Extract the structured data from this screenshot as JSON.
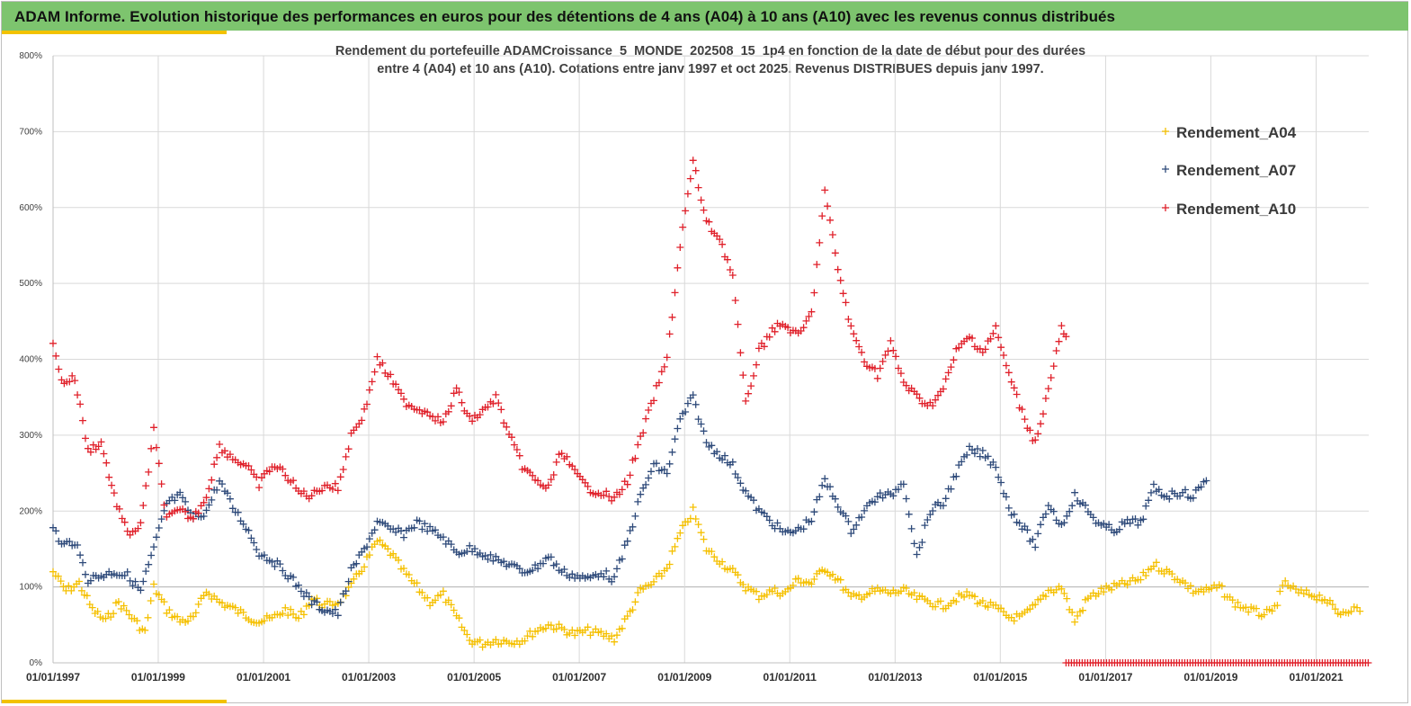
{
  "header": {
    "title": "ADAM Informe. Evolution historique des performances en euros pour des détentions de 4 ans (A04) à 10 ans (A10) avec les revenus connus distribués"
  },
  "colors": {
    "banner": "#7dc46e",
    "accent": "#f2c200",
    "A04": "#f5c000",
    "A07": "#2e4a7a",
    "A10": "#e0202a"
  },
  "chart_data": {
    "type": "scatter",
    "title_lines": [
      "Rendement du portefeuille ADAMCroissance_5_MONDE_202508_15_1p4  en fonction de la date de début pour des durées",
      "entre 4 (A04) et 10 ans (A10). Cotations entre janv 1997 et oct 2025. Revenus DISTRIBUES depuis janv 1997."
    ],
    "marker": "+",
    "x_type": "date",
    "xlim": [
      "1997-01-01",
      "2022-01-01"
    ],
    "x_tick_labels": [
      "01/01/1997",
      "01/01/1999",
      "01/01/2001",
      "01/01/2003",
      "01/01/2005",
      "01/01/2007",
      "01/01/2009",
      "01/01/2011",
      "01/01/2013",
      "01/01/2015",
      "01/01/2017",
      "01/01/2019",
      "01/01/2021"
    ],
    "ylim": [
      0,
      8
    ],
    "y_tick_labels": [
      "0%",
      "100%",
      "200%",
      "300%",
      "400%",
      "500%",
      "600%",
      "700%",
      "800%"
    ],
    "grid": true,
    "legend_position": "top-right",
    "series": [
      {
        "name": "Rendement_A04",
        "points": [
          [
            "1997-01-01",
            1.2
          ],
          [
            "1997-04-01",
            0.95
          ],
          [
            "1997-07-01",
            1.05
          ],
          [
            "1997-10-01",
            0.7
          ],
          [
            "1998-01-01",
            0.55
          ],
          [
            "1998-04-01",
            0.8
          ],
          [
            "1998-07-01",
            0.6
          ],
          [
            "1998-10-01",
            0.4
          ],
          [
            "1998-12-01",
            1.0
          ],
          [
            "1999-03-01",
            0.7
          ],
          [
            "1999-06-01",
            0.55
          ],
          [
            "1999-09-01",
            0.58
          ],
          [
            "1999-12-01",
            0.95
          ],
          [
            "2000-03-01",
            0.8
          ],
          [
            "2000-06-01",
            0.72
          ],
          [
            "2000-09-01",
            0.62
          ],
          [
            "2000-12-01",
            0.55
          ],
          [
            "2001-03-01",
            0.58
          ],
          [
            "2001-06-01",
            0.7
          ],
          [
            "2001-09-01",
            0.58
          ],
          [
            "2001-12-01",
            0.85
          ],
          [
            "2002-03-01",
            0.75
          ],
          [
            "2002-06-01",
            0.8
          ],
          [
            "2002-09-01",
            1.0
          ],
          [
            "2002-12-01",
            1.3
          ],
          [
            "2003-03-01",
            1.6
          ],
          [
            "2003-06-01",
            1.45
          ],
          [
            "2003-09-01",
            1.2
          ],
          [
            "2003-12-01",
            1.0
          ],
          [
            "2004-03-01",
            0.8
          ],
          [
            "2004-06-01",
            0.9
          ],
          [
            "2004-09-01",
            0.6
          ],
          [
            "2004-12-01",
            0.3
          ],
          [
            "2005-03-01",
            0.25
          ],
          [
            "2005-06-01",
            0.3
          ],
          [
            "2005-09-01",
            0.28
          ],
          [
            "2005-12-01",
            0.3
          ],
          [
            "2006-03-01",
            0.42
          ],
          [
            "2006-06-01",
            0.5
          ],
          [
            "2006-09-01",
            0.45
          ],
          [
            "2006-12-01",
            0.38
          ],
          [
            "2007-03-01",
            0.42
          ],
          [
            "2007-06-01",
            0.38
          ],
          [
            "2007-09-01",
            0.32
          ],
          [
            "2007-12-01",
            0.6
          ],
          [
            "2008-03-01",
            0.95
          ],
          [
            "2008-06-01",
            1.05
          ],
          [
            "2008-09-01",
            1.25
          ],
          [
            "2008-12-01",
            1.7
          ],
          [
            "2009-03-01",
            2.0
          ],
          [
            "2009-06-01",
            1.5
          ],
          [
            "2009-09-01",
            1.35
          ],
          [
            "2009-12-01",
            1.2
          ],
          [
            "2010-03-01",
            1.0
          ],
          [
            "2010-06-01",
            0.88
          ],
          [
            "2010-09-01",
            0.95
          ],
          [
            "2010-12-01",
            0.92
          ],
          [
            "2011-03-01",
            1.1
          ],
          [
            "2011-06-01",
            1.05
          ],
          [
            "2011-09-01",
            1.25
          ],
          [
            "2011-12-01",
            1.1
          ],
          [
            "2012-03-01",
            0.85
          ],
          [
            "2012-06-01",
            0.9
          ],
          [
            "2012-09-01",
            0.95
          ],
          [
            "2012-12-01",
            0.92
          ],
          [
            "2013-03-01",
            0.95
          ],
          [
            "2013-06-01",
            0.85
          ],
          [
            "2013-09-01",
            0.8
          ],
          [
            "2013-12-01",
            0.75
          ],
          [
            "2014-03-01",
            0.85
          ],
          [
            "2014-06-01",
            0.9
          ],
          [
            "2014-09-01",
            0.78
          ],
          [
            "2014-12-01",
            0.72
          ],
          [
            "2015-03-01",
            0.6
          ],
          [
            "2015-06-01",
            0.6
          ],
          [
            "2015-09-01",
            0.75
          ],
          [
            "2015-12-01",
            0.95
          ],
          [
            "2016-03-01",
            1.0
          ],
          [
            "2016-06-01",
            0.55
          ],
          [
            "2016-09-01",
            0.85
          ],
          [
            "2016-12-01",
            0.95
          ],
          [
            "2017-03-01",
            1.0
          ],
          [
            "2017-06-01",
            1.05
          ],
          [
            "2017-09-01",
            1.1
          ],
          [
            "2017-12-01",
            1.3
          ],
          [
            "2018-03-01",
            1.2
          ],
          [
            "2018-06-01",
            1.1
          ],
          [
            "2018-09-01",
            0.95
          ],
          [
            "2018-12-01",
            0.95
          ],
          [
            "2019-03-01",
            1.0
          ],
          [
            "2019-06-01",
            0.8
          ],
          [
            "2019-09-01",
            0.72
          ],
          [
            "2019-12-01",
            0.65
          ],
          [
            "2020-03-01",
            0.65
          ],
          [
            "2020-06-01",
            1.05
          ],
          [
            "2020-09-01",
            0.92
          ],
          [
            "2020-12-01",
            0.9
          ],
          [
            "2021-03-01",
            0.85
          ],
          [
            "2021-06-01",
            0.65
          ],
          [
            "2021-09-01",
            0.72
          ],
          [
            "2021-11-01",
            0.68
          ]
        ]
      },
      {
        "name": "Rendement_A07",
        "points": [
          [
            "1997-01-01",
            1.8
          ],
          [
            "1997-03-01",
            1.55
          ],
          [
            "1997-06-01",
            1.6
          ],
          [
            "1997-09-01",
            1.1
          ],
          [
            "1997-12-01",
            1.15
          ],
          [
            "1998-03-01",
            1.2
          ],
          [
            "1998-06-01",
            1.15
          ],
          [
            "1998-09-01",
            0.95
          ],
          [
            "1998-12-01",
            1.5
          ],
          [
            "1999-03-01",
            2.1
          ],
          [
            "1999-06-01",
            2.2
          ],
          [
            "1999-09-01",
            1.9
          ],
          [
            "1999-12-01",
            2.0
          ],
          [
            "2000-03-01",
            2.4
          ],
          [
            "2000-06-01",
            2.05
          ],
          [
            "2000-09-01",
            1.8
          ],
          [
            "2000-12-01",
            1.45
          ],
          [
            "2001-03-01",
            1.35
          ],
          [
            "2001-06-01",
            1.2
          ],
          [
            "2001-09-01",
            1.0
          ],
          [
            "2001-12-01",
            0.8
          ],
          [
            "2002-03-01",
            0.7
          ],
          [
            "2002-06-01",
            0.65
          ],
          [
            "2002-09-01",
            1.2
          ],
          [
            "2002-12-01",
            1.5
          ],
          [
            "2003-03-01",
            1.85
          ],
          [
            "2003-06-01",
            1.75
          ],
          [
            "2003-09-01",
            1.7
          ],
          [
            "2003-12-01",
            1.85
          ],
          [
            "2004-03-01",
            1.75
          ],
          [
            "2004-06-01",
            1.65
          ],
          [
            "2004-09-01",
            1.45
          ],
          [
            "2004-12-01",
            1.5
          ],
          [
            "2005-03-01",
            1.45
          ],
          [
            "2005-06-01",
            1.35
          ],
          [
            "2005-09-01",
            1.3
          ],
          [
            "2005-12-01",
            1.2
          ],
          [
            "2006-03-01",
            1.25
          ],
          [
            "2006-06-01",
            1.4
          ],
          [
            "2006-09-01",
            1.2
          ],
          [
            "2006-12-01",
            1.15
          ],
          [
            "2007-03-01",
            1.1
          ],
          [
            "2007-06-01",
            1.2
          ],
          [
            "2007-09-01",
            1.1
          ],
          [
            "2007-12-01",
            1.6
          ],
          [
            "2008-03-01",
            2.2
          ],
          [
            "2008-06-01",
            2.6
          ],
          [
            "2008-09-01",
            2.5
          ],
          [
            "2008-12-01",
            3.2
          ],
          [
            "2009-03-01",
            3.5
          ],
          [
            "2009-06-01",
            2.9
          ],
          [
            "2009-09-01",
            2.75
          ],
          [
            "2009-12-01",
            2.6
          ],
          [
            "2010-03-01",
            2.25
          ],
          [
            "2010-06-01",
            2.0
          ],
          [
            "2010-09-01",
            1.85
          ],
          [
            "2010-12-01",
            1.7
          ],
          [
            "2011-03-01",
            1.75
          ],
          [
            "2011-06-01",
            1.9
          ],
          [
            "2011-09-01",
            2.4
          ],
          [
            "2011-12-01",
            2.1
          ],
          [
            "2012-03-01",
            1.75
          ],
          [
            "2012-06-01",
            2.0
          ],
          [
            "2012-09-01",
            2.2
          ],
          [
            "2012-12-01",
            2.2
          ],
          [
            "2013-03-01",
            2.4
          ],
          [
            "2013-06-01",
            1.4
          ],
          [
            "2013-09-01",
            2.0
          ],
          [
            "2013-12-01",
            2.1
          ],
          [
            "2014-03-01",
            2.5
          ],
          [
            "2014-06-01",
            2.8
          ],
          [
            "2014-09-01",
            2.75
          ],
          [
            "2014-12-01",
            2.6
          ],
          [
            "2015-03-01",
            2.05
          ],
          [
            "2015-06-01",
            1.8
          ],
          [
            "2015-09-01",
            1.55
          ],
          [
            "2015-12-01",
            2.1
          ],
          [
            "2016-03-01",
            1.8
          ],
          [
            "2016-06-01",
            2.2
          ],
          [
            "2016-09-01",
            2.0
          ],
          [
            "2016-12-01",
            1.8
          ],
          [
            "2017-03-01",
            1.75
          ],
          [
            "2017-06-01",
            1.85
          ],
          [
            "2017-09-01",
            1.85
          ],
          [
            "2017-12-01",
            2.3
          ],
          [
            "2018-03-01",
            2.2
          ],
          [
            "2018-06-01",
            2.25
          ],
          [
            "2018-09-01",
            2.2
          ],
          [
            "2018-12-01",
            2.4
          ]
        ]
      },
      {
        "name": "Rendement_A10",
        "points": [
          [
            "1997-01-01",
            4.25
          ],
          [
            "1997-03-01",
            3.7
          ],
          [
            "1997-06-01",
            3.75
          ],
          [
            "1997-09-01",
            2.8
          ],
          [
            "1997-12-01",
            2.9
          ],
          [
            "1998-03-01",
            2.2
          ],
          [
            "1998-06-01",
            1.7
          ],
          [
            "1998-09-01",
            1.8
          ],
          [
            "1998-12-01",
            3.05
          ],
          [
            "1999-03-01",
            1.9
          ],
          [
            "1999-06-01",
            2.0
          ],
          [
            "1999-09-01",
            1.9
          ],
          [
            "1999-12-01",
            2.2
          ],
          [
            "2000-03-01",
            2.85
          ],
          [
            "2000-06-01",
            2.7
          ],
          [
            "2000-09-01",
            2.6
          ],
          [
            "2000-12-01",
            2.35
          ],
          [
            "2001-03-01",
            2.6
          ],
          [
            "2001-06-01",
            2.5
          ],
          [
            "2001-09-01",
            2.25
          ],
          [
            "2001-12-01",
            2.2
          ],
          [
            "2002-03-01",
            2.35
          ],
          [
            "2002-06-01",
            2.3
          ],
          [
            "2002-09-01",
            3.0
          ],
          [
            "2002-12-01",
            3.3
          ],
          [
            "2003-03-01",
            4.0
          ],
          [
            "2003-06-01",
            3.75
          ],
          [
            "2003-09-01",
            3.45
          ],
          [
            "2003-12-01",
            3.35
          ],
          [
            "2004-03-01",
            3.3
          ],
          [
            "2004-06-01",
            3.15
          ],
          [
            "2004-09-01",
            3.6
          ],
          [
            "2004-12-01",
            3.2
          ],
          [
            "2005-03-01",
            3.3
          ],
          [
            "2005-06-01",
            3.5
          ],
          [
            "2005-09-01",
            3.0
          ],
          [
            "2005-12-01",
            2.6
          ],
          [
            "2006-03-01",
            2.4
          ],
          [
            "2006-06-01",
            2.3
          ],
          [
            "2006-09-01",
            2.8
          ],
          [
            "2006-12-01",
            2.5
          ],
          [
            "2007-03-01",
            2.3
          ],
          [
            "2007-06-01",
            2.25
          ],
          [
            "2007-09-01",
            2.15
          ],
          [
            "2007-12-01",
            2.4
          ],
          [
            "2008-03-01",
            2.95
          ],
          [
            "2008-06-01",
            3.5
          ],
          [
            "2008-09-01",
            4.0
          ],
          [
            "2008-12-01",
            5.5
          ],
          [
            "2009-03-01",
            6.6
          ],
          [
            "2009-06-01",
            5.8
          ],
          [
            "2009-09-01",
            5.6
          ],
          [
            "2009-12-01",
            5.1
          ],
          [
            "2010-03-01",
            3.4
          ],
          [
            "2010-06-01",
            4.1
          ],
          [
            "2010-09-01",
            4.4
          ],
          [
            "2010-12-01",
            4.45
          ],
          [
            "2011-03-01",
            4.3
          ],
          [
            "2011-06-01",
            4.6
          ],
          [
            "2011-09-01",
            6.2
          ],
          [
            "2011-12-01",
            5.2
          ],
          [
            "2012-03-01",
            4.4
          ],
          [
            "2012-06-01",
            4.0
          ],
          [
            "2012-09-01",
            3.8
          ],
          [
            "2012-12-01",
            4.2
          ],
          [
            "2013-03-01",
            3.7
          ],
          [
            "2013-06-01",
            3.5
          ],
          [
            "2013-09-01",
            3.4
          ],
          [
            "2013-12-01",
            3.6
          ],
          [
            "2014-03-01",
            4.1
          ],
          [
            "2014-06-01",
            4.3
          ],
          [
            "2014-09-01",
            4.1
          ],
          [
            "2014-12-01",
            4.4
          ],
          [
            "2015-03-01",
            3.8
          ],
          [
            "2015-06-01",
            3.3
          ],
          [
            "2015-09-01",
            2.9
          ],
          [
            "2015-12-01",
            3.6
          ],
          [
            "2016-03-01",
            4.4
          ],
          [
            "2016-04-01",
            4.3
          ]
        ]
      }
    ],
    "baseline_series": {
      "name": "Rendement_A10",
      "value": 0,
      "from": "2016-04-01",
      "to": "2022-01-01"
    }
  }
}
